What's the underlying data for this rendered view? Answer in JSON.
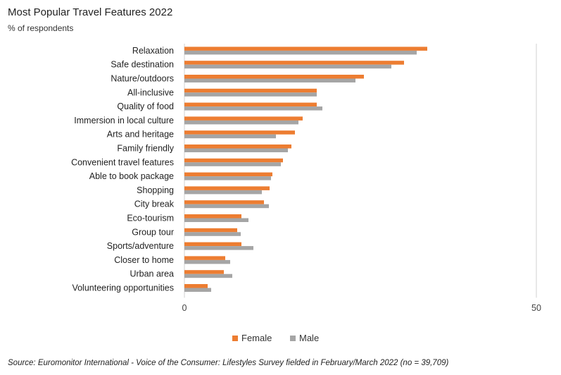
{
  "title": "Most Popular Travel Features 2022",
  "subtitle": "% of respondents",
  "source": "Source: Euromonitor International - Voice of the Consumer: Lifestyles Survey fielded in February/March 2022 (no = 39,709)",
  "colors": {
    "female": "#ED7D31",
    "male": "#A5A5A5",
    "axis": "#D0D0D0"
  },
  "chart_data": {
    "type": "bar",
    "orientation": "horizontal",
    "categories": [
      "Relaxation",
      "Safe destination",
      "Nature/outdoors",
      "All-inclusive",
      "Quality of food",
      "Immersion in local culture",
      "Arts and heritage",
      "Family friendly",
      "Convenient travel features",
      "Able to book package",
      "Shopping",
      "City break",
      "Eco-tourism",
      "Group tour",
      "Sports/adventure",
      "Closer to home",
      "Urban area",
      "Volunteering opportunities"
    ],
    "series": [
      {
        "name": "Female",
        "values": [
          34.5,
          31.2,
          25.5,
          18.8,
          18.8,
          16.8,
          15.7,
          15.2,
          14.0,
          12.5,
          12.1,
          11.3,
          8.1,
          7.5,
          8.1,
          5.8,
          5.6,
          3.3
        ]
      },
      {
        "name": "Male",
        "values": [
          33.0,
          29.4,
          24.3,
          18.8,
          19.6,
          16.2,
          13.0,
          14.7,
          13.7,
          12.3,
          11.0,
          12.0,
          9.1,
          8.0,
          9.8,
          6.5,
          6.8,
          3.8
        ]
      }
    ],
    "xlim": [
      0,
      50
    ],
    "ticks": [
      "0",
      "50"
    ],
    "legend": "bottom"
  }
}
